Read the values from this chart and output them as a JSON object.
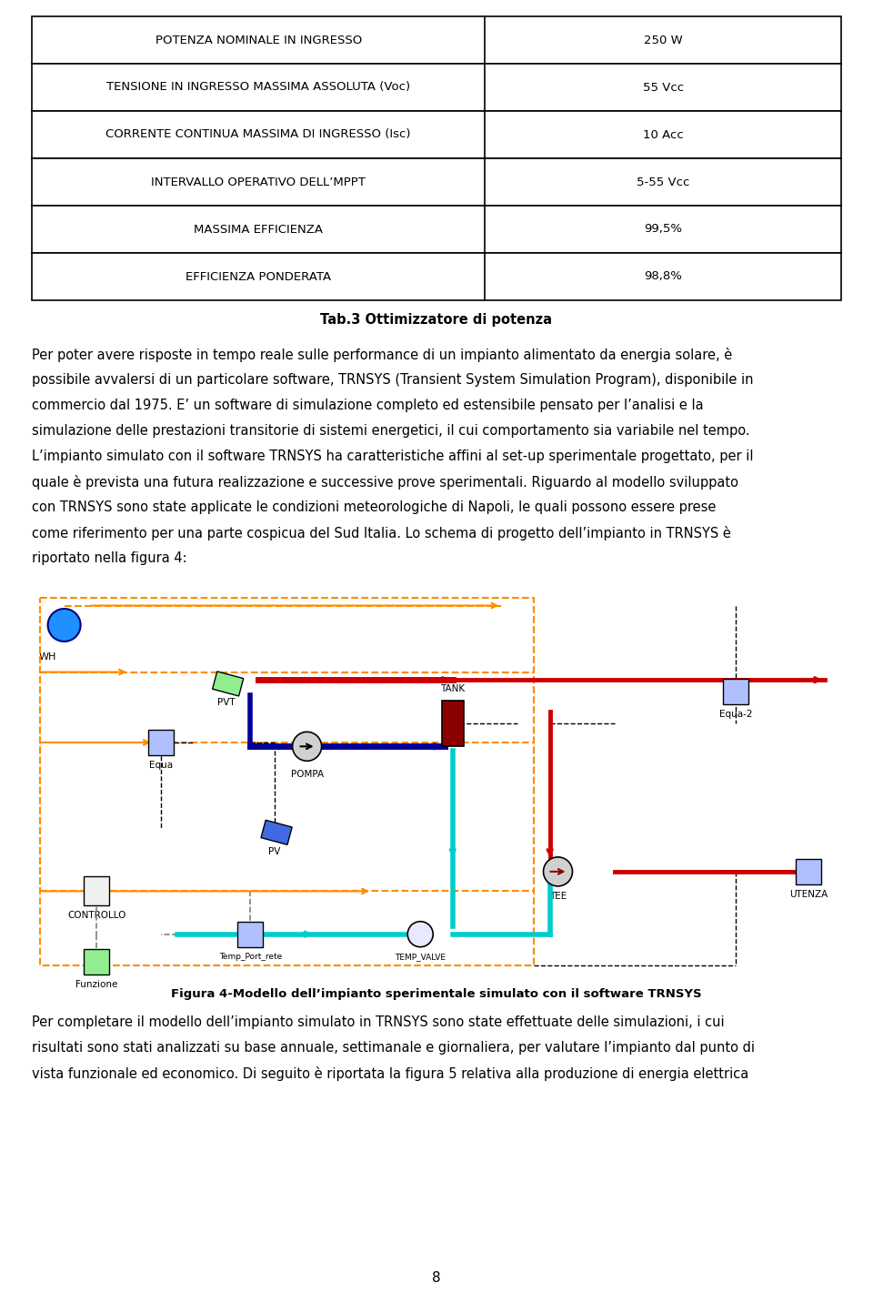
{
  "table_rows": [
    [
      "POTENZA NOMINALE IN INGRESSO",
      "250 W"
    ],
    [
      "TENSIONE IN INGRESSO MASSIMA ASSOLUTA (Voc)",
      "55 Vcc"
    ],
    [
      "CORRENTE CONTINUA MASSIMA DI INGRESSO (Isc)",
      "10 Acc"
    ],
    [
      "INTERVALLO OPERATIVO DELL’MPPT",
      "5-55 Vcc"
    ],
    [
      "MASSIMA EFFICIENZA",
      "99,5%"
    ],
    [
      "EFFICIENZA PONDERATA",
      "98,8%"
    ]
  ],
  "table_caption": "Tab.3 Ottimizzatore di potenza",
  "body_text": [
    "Per poter avere risposte in tempo reale sulle performance di un impianto alimentato da energia solare, è",
    "possibile avvalersi di un particolare software, TRNSYS (Transient System Simulation Program), disponibile in",
    "commercio dal 1975. E’ un software di simulazione completo ed estensibile pensato per l’analisi e la",
    "simulazione delle prestazioni transitorie di sistemi energetici, il cui comportamento sia variabile nel tempo.",
    "L’impianto simulato con il software TRNSYS ha caratteristiche affini al set-up sperimentale progettato, per il",
    "quale è prevista una futura realizzazione e successive prove sperimentali. Riguardo al modello sviluppato",
    "con TRNSYS sono state applicate le condizioni meteorologiche di Napoli, le quali possono essere prese",
    "come riferimento per una parte cospicua del Sud Italia. Lo schema di progetto dell’impianto in TRNSYS è",
    "riportato nella figura 4:"
  ],
  "fig_caption": "Figura 4-Modello dell’impianto sperimentale simulato con il software TRNSYS",
  "bottom_text": [
    "Per completare il modello dell’impianto simulato in TRNSYS sono state effettuate delle simulazioni, i cui",
    "risultati sono stati analizzati su base annuale, settimanale e giornaliera, per valutare l’impianto dal punto di",
    "vista funzionale ed economico. Di seguito è riportata la figura 5 relativa alla produzione di energia elettrica"
  ],
  "page_number": "8",
  "bg_color": "#ffffff",
  "text_color": "#000000",
  "table_border_color": "#000000",
  "font_size_body": 11,
  "font_size_caption": 10.5
}
